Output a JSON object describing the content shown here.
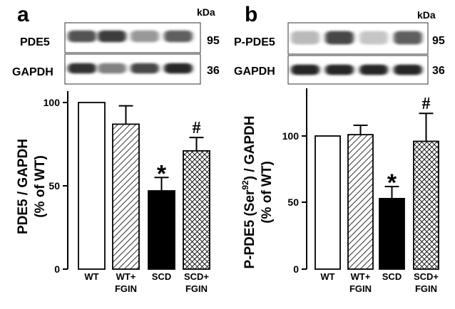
{
  "chart_data": [
    {
      "type": "bar",
      "panel": "a",
      "categories": [
        "WT",
        "WT+\nFGIN",
        "SCD",
        "SCD+\nFGIN"
      ],
      "values": [
        100,
        87,
        47,
        71
      ],
      "errors": [
        0,
        11,
        8,
        8
      ],
      "annotations": [
        "",
        "",
        "*",
        "#"
      ],
      "ylabel": "PDE5 / GAPDH\n(% of WT)",
      "ylim": [
        0,
        100
      ],
      "yticks": [
        "0",
        "50",
        "100"
      ],
      "blot": {
        "unit": "kDa",
        "rows": [
          {
            "label": "PDE5",
            "size": "95",
            "intensity": [
              0.75,
              0.85,
              0.45,
              0.7
            ]
          },
          {
            "label": "GAPDH",
            "size": "36",
            "intensity": [
              0.9,
              0.55,
              0.8,
              0.95
            ]
          }
        ]
      }
    },
    {
      "type": "bar",
      "panel": "b",
      "categories": [
        "WT",
        "WT+\nFGIN",
        "SCD",
        "SCD+\nFGIN"
      ],
      "values": [
        100,
        101,
        53,
        96
      ],
      "errors": [
        0,
        7,
        9,
        21
      ],
      "annotations": [
        "",
        "",
        "*",
        "#"
      ],
      "ylabel_main": "P-PDE5 (Ser",
      "ylabel_sup": "92",
      "ylabel_tail": ") / GAPDH",
      "ylabel_line2": "(% of WT)",
      "ylim": [
        0,
        100
      ],
      "yticks": [
        "0",
        "50",
        "100"
      ],
      "blot": {
        "unit": "kDa",
        "rows": [
          {
            "label": "P-PDE5",
            "size": "95",
            "intensity": [
              0.3,
              0.8,
              0.25,
              0.7
            ]
          },
          {
            "label": "GAPDH",
            "size": "36",
            "intensity": [
              0.95,
              0.95,
              0.95,
              0.95
            ]
          }
        ]
      }
    }
  ]
}
